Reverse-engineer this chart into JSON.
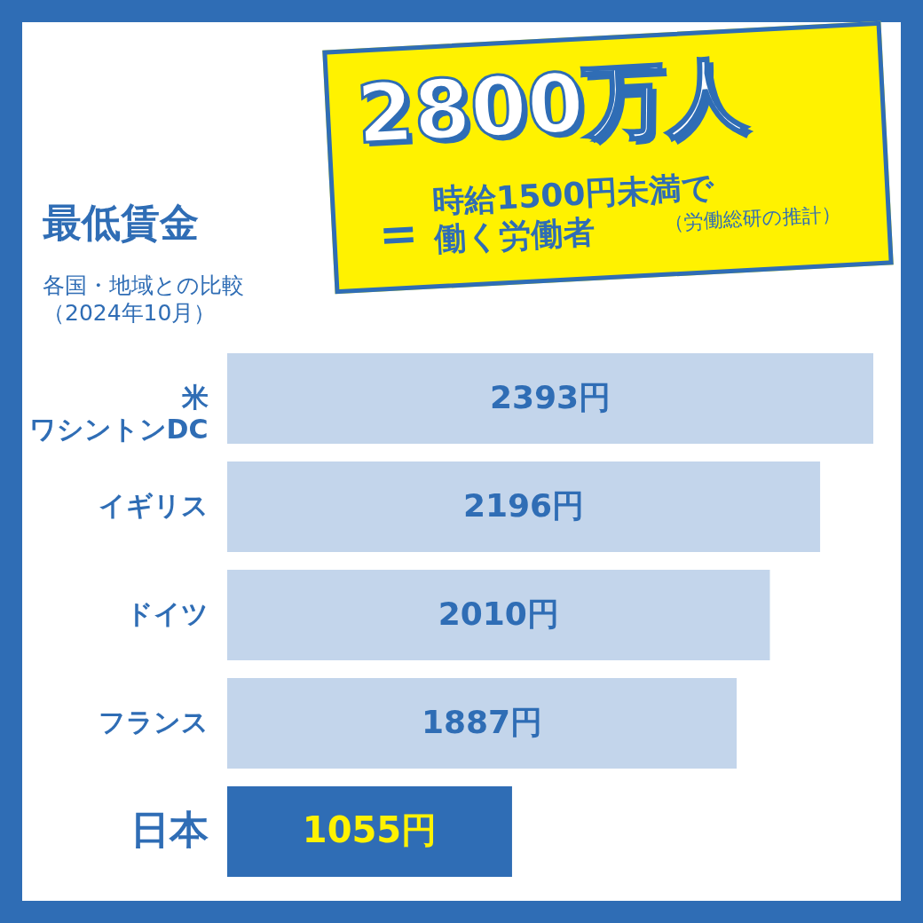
{
  "chart_data": {
    "type": "bar",
    "orientation": "horizontal",
    "title": "最低賃金",
    "subtitle": "各国・地域との比較（2024年10月）",
    "categories": [
      "米ワシントンDC",
      "イギリス",
      "ドイツ",
      "フランス",
      "日本"
    ],
    "values": [
      2393,
      2196,
      2010,
      1887,
      1055
    ],
    "colors": [
      "#c3d5eb",
      "#c3d5eb",
      "#c3d5eb",
      "#c3d5eb",
      "#2f6db5"
    ],
    "value_labels": [
      "2393円",
      "2196円",
      "2010円",
      "1887円",
      "1055円"
    ],
    "annotations": [
      "2800万人",
      "＝",
      "時給1500円未満で働く労働者",
      "（労働総研の推計）"
    ],
    "grid": false
  }
}
